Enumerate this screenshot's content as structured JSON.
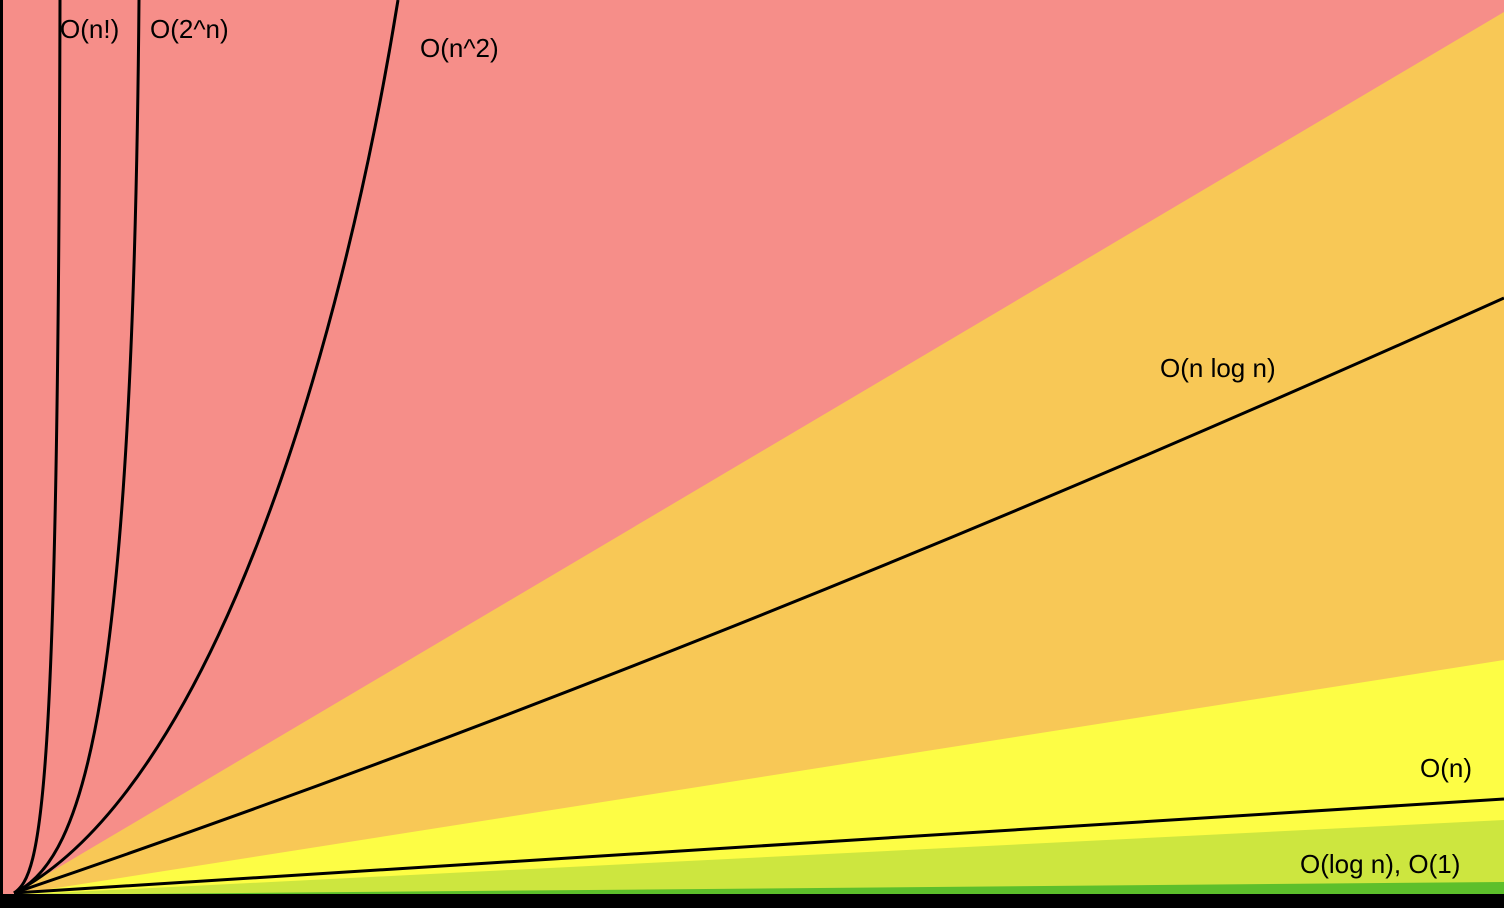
{
  "labels": {
    "factorial": "O(n!)",
    "exponential": "O(2^n)",
    "quadratic": "O(n^2)",
    "linearithmic": "O(n log n)",
    "linear": "O(n)",
    "logarithmic_constant": "O(log n), O(1)"
  }
}
